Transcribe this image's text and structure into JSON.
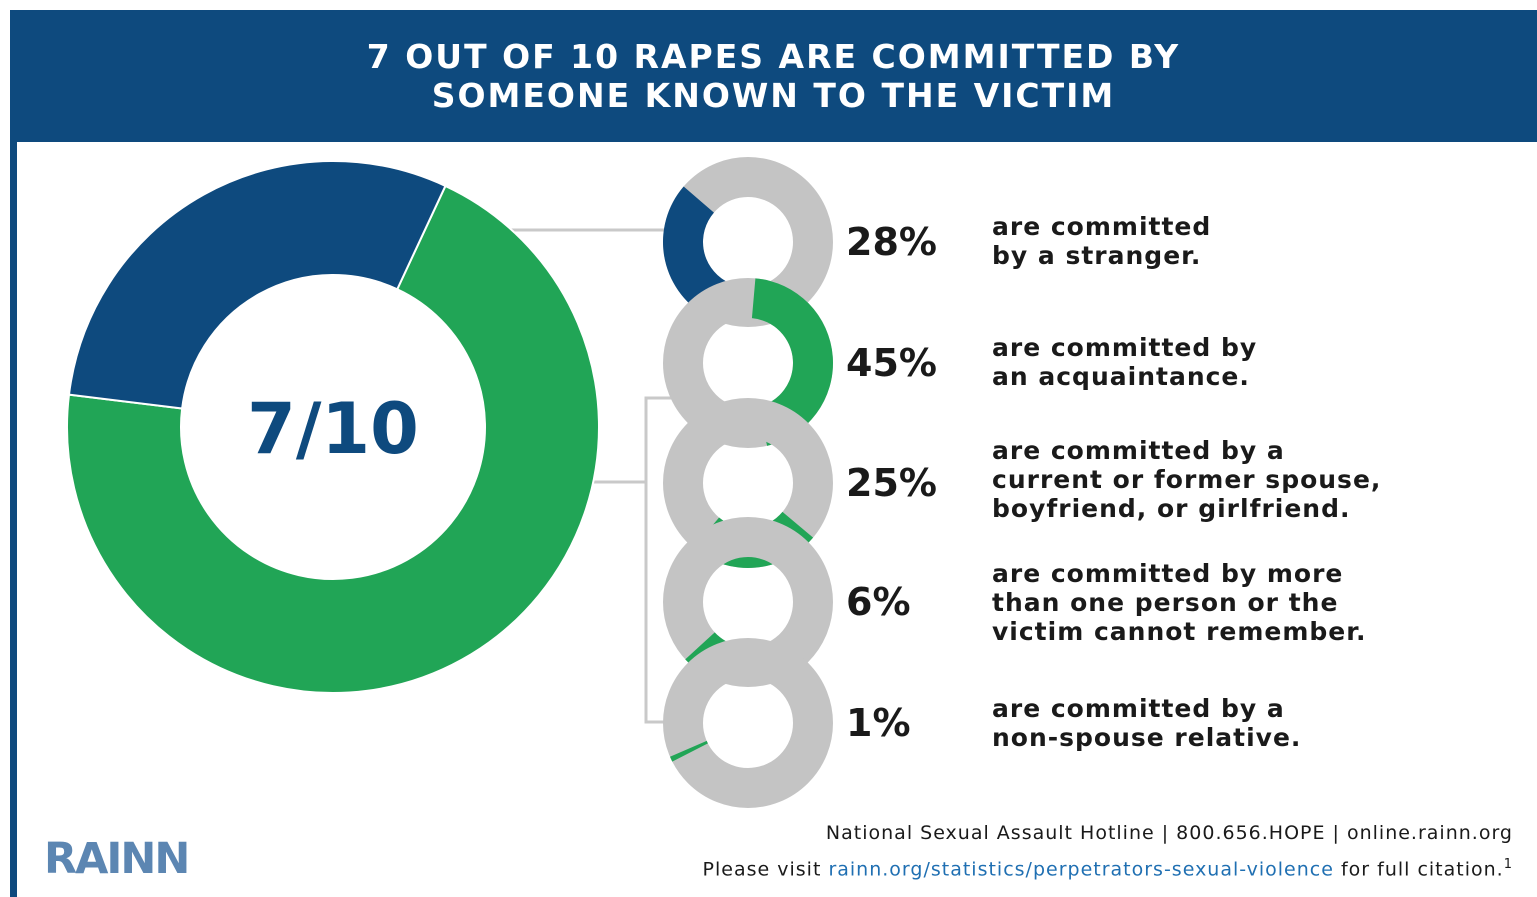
{
  "header": {
    "line1": "7 OUT OF 10 RAPES ARE COMMITTED BY",
    "line2": "SOMEONE KNOWN TO THE VICTIM"
  },
  "big_donut": {
    "label": "7/10",
    "known_fraction": 0.7
  },
  "colors": {
    "navy": "#0e4a7e",
    "green": "#21a556",
    "gray": "#c4c4c4",
    "connector": "#c9c9c9",
    "text": "#1a1a1a",
    "link": "#1f6fb2",
    "logo": "#5c86b2"
  },
  "chart_data": {
    "type": "pie",
    "title": "7 OUT OF 10 RAPES ARE COMMITTED BY SOMEONE KNOWN TO THE VICTIM",
    "categories": [
      {
        "label": "28%",
        "value": 28,
        "color": "navy",
        "lines": [
          "are committed",
          "by a stranger."
        ]
      },
      {
        "label": "45%",
        "value": 45,
        "color": "green",
        "lines": [
          "are committed by",
          "an acquaintance."
        ]
      },
      {
        "label": "25%",
        "value": 25,
        "color": "green",
        "lines": [
          "are committed by a",
          "current or former spouse,",
          "boyfriend, or girlfriend."
        ]
      },
      {
        "label": "6%",
        "value": 6,
        "color": "green",
        "lines": [
          "are committed by more",
          "than one person or the",
          "victim cannot remember."
        ]
      },
      {
        "label": "1%",
        "value": 1,
        "color": "green",
        "lines": [
          "are committed by a",
          "non-spouse relative."
        ]
      }
    ]
  },
  "footer": {
    "logo": "RAINN",
    "hotline": "National Sexual Assault Hotline | 800.656.HOPE | online.rainn.org",
    "citation_pre": "Please visit ",
    "citation_link": "rainn.org/statistics/perpetrators-sexual-violence",
    "citation_post": " for full citation.",
    "citation_note": "1"
  }
}
